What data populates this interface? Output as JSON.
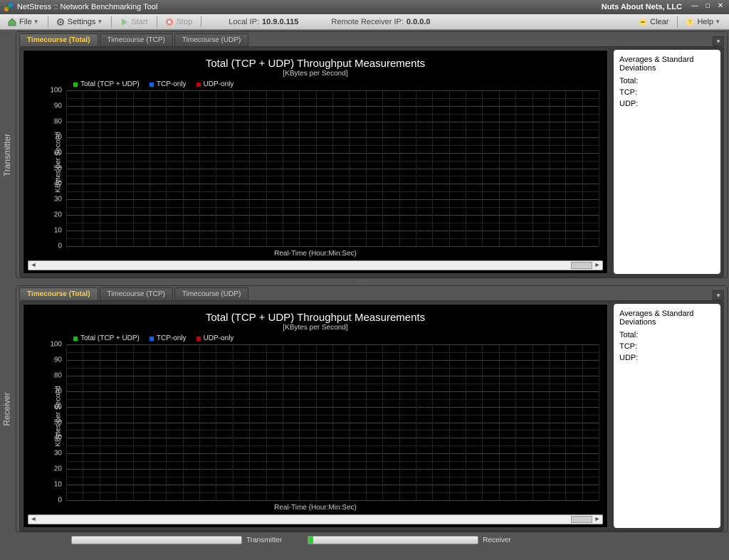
{
  "titlebar": {
    "title": "NetStress :: Network Benchmarking Tool",
    "company": "Nuts About Nets, LLC"
  },
  "toolbar": {
    "file": "File",
    "settings": "Settings",
    "start": "Start",
    "stop": "Stop",
    "localip_label": "Local IP:",
    "localip_value": "10.9.0.115",
    "remoteip_label": "Remote Receiver IP:",
    "remoteip_value": "0.0.0.0",
    "clear": "Clear",
    "help": "Help"
  },
  "side": {
    "transmitter": "Transmitter",
    "receiver": "Receiver"
  },
  "tabs": {
    "t0": "Timecourse (Total)",
    "t1": "Timecourse (TCP)",
    "t2": "Timecourse (UDP)"
  },
  "chart": {
    "title": "Total (TCP + UDP) Throughput Measurements",
    "subtitle": "[KBytes per Second]",
    "yaxis": "KBytes per Second",
    "xaxis": "Real-Time (Hour:Min:Sec)",
    "legend": {
      "total": "Total (TCP + UDP)",
      "tcp": "TCP-only",
      "udp": "UDP-only",
      "color_total": "#00cc00",
      "color_tcp": "#0066ff",
      "color_udp": "#cc0000"
    },
    "ylim": [
      0,
      100
    ],
    "ytick_step": 10,
    "yticks": {
      "y0": "0",
      "y1": "10",
      "y2": "20",
      "y3": "30",
      "y4": "40",
      "y5": "50",
      "y6": "60",
      "y7": "70",
      "y8": "80",
      "y9": "90",
      "y10": "100"
    },
    "grid_major_color": "#444444",
    "grid_minor_color": "#222222",
    "background": "#000000",
    "vlines": 32
  },
  "stats": {
    "heading": "Averages & Standard Deviations",
    "total": "Total:",
    "tcp": "TCP:",
    "udp": "UDP:"
  },
  "bottom": {
    "transmitter": "Transmitter",
    "receiver": "Receiver",
    "rx_fill_pct": 3
  }
}
